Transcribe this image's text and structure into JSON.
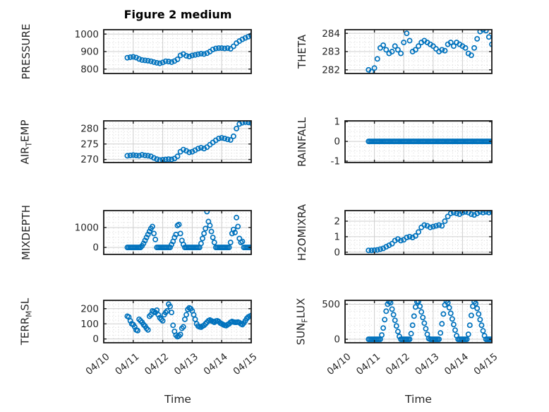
{
  "figure": {
    "title": "Figure 2 medium",
    "xlabel": "Time",
    "accent_color": "#0072BD",
    "axis_color": "#1a1a1a",
    "tick_text_color": "#262626",
    "major_grid_color": "#cfcfcf",
    "minor_grid_color": "#d6d6d6",
    "xtick_labels": [
      "04/10",
      "04/11",
      "04/12",
      "04/13",
      "04/14",
      "04/15"
    ]
  },
  "chart_data": [
    {
      "name": "pressure",
      "type": "scatter",
      "row": 0,
      "col": 0,
      "ylabel_parts": [
        {
          "t": "PRESSURE"
        }
      ],
      "ylim": [
        775,
        1025
      ],
      "yticks": [
        800,
        900,
        1000
      ],
      "minor_y": 25,
      "xlim": [
        0,
        5
      ],
      "xticks": [
        0,
        1,
        2,
        3,
        4,
        5
      ],
      "minor_x": 0.166667,
      "x0": 0.8,
      "dx": 0.1,
      "y": [
        865,
        868,
        870,
        866,
        858,
        852,
        850,
        848,
        845,
        840,
        836,
        833,
        838,
        845,
        843,
        840,
        846,
        856,
        878,
        886,
        876,
        872,
        878,
        881,
        885,
        888,
        886,
        891,
        900,
        912,
        918,
        920,
        920,
        918,
        920,
        916,
        930,
        948,
        960,
        970,
        978,
        985,
        992
      ]
    },
    {
      "name": "theta",
      "type": "scatter",
      "row": 0,
      "col": 1,
      "ylabel_parts": [
        {
          "t": "THETA"
        }
      ],
      "ylim": [
        281.8,
        284.2
      ],
      "yticks": [
        282,
        283,
        284
      ],
      "minor_y": 0.25,
      "xlim": [
        0,
        5
      ],
      "xticks": [
        0,
        1,
        2,
        3,
        4,
        5
      ],
      "minor_x": 0.166667,
      "x0": 0.8,
      "dx": 0.1,
      "y": [
        282.0,
        281.9,
        282.1,
        282.6,
        283.2,
        283.35,
        283.1,
        282.9,
        283.0,
        283.3,
        283.1,
        282.9,
        283.5,
        284.0,
        283.6,
        283.0,
        283.1,
        283.3,
        283.5,
        283.6,
        283.5,
        283.4,
        283.3,
        283.15,
        283.0,
        283.1,
        283.05,
        283.4,
        283.5,
        283.3,
        283.5,
        283.4,
        283.3,
        283.2,
        282.9,
        282.8,
        283.2,
        283.7,
        284.1,
        284.2,
        284.15,
        283.8,
        283.4
      ]
    },
    {
      "name": "air_temp",
      "type": "scatter",
      "row": 1,
      "col": 0,
      "ylabel_parts": [
        {
          "t": "AIR"
        },
        {
          "t": "T",
          "sub": true
        },
        {
          "t": "EMP"
        }
      ],
      "ylim": [
        269,
        282.5
      ],
      "yticks": [
        270,
        275,
        280
      ],
      "minor_y": 1,
      "xlim": [
        0,
        5
      ],
      "xticks": [
        0,
        1,
        2,
        3,
        4,
        5
      ],
      "minor_x": 0.166667,
      "x0": 0.8,
      "dx": 0.1,
      "y": [
        271.2,
        271.3,
        271.4,
        271.3,
        271.2,
        271.5,
        271.3,
        271.2,
        271.0,
        270.5,
        270.1,
        269.8,
        269.9,
        270.0,
        270.1,
        270.0,
        270.3,
        271.0,
        272.5,
        273.2,
        272.8,
        272.3,
        272.5,
        273.0,
        273.5,
        273.8,
        273.5,
        274.0,
        274.8,
        275.5,
        276.2,
        276.8,
        277.0,
        276.8,
        276.5,
        276.3,
        277.5,
        280.0,
        281.5,
        281.9,
        282.1,
        282.0,
        281.8
      ]
    },
    {
      "name": "rainfall",
      "type": "scatter",
      "row": 1,
      "col": 1,
      "ylabel_parts": [
        {
          "t": "RAINFALL"
        }
      ],
      "ylim": [
        -1.07,
        1.04
      ],
      "yticks": [
        -1,
        0,
        1
      ],
      "minor_y": 0.25,
      "xlim": [
        0,
        5
      ],
      "xticks": [
        0,
        1,
        2,
        3,
        4,
        5
      ],
      "minor_x": 0.166667,
      "x0": 0.8,
      "dx": 0.05,
      "y": [
        0,
        0,
        0,
        0,
        0,
        0,
        0,
        0,
        0,
        0,
        0,
        0,
        0,
        0,
        0,
        0,
        0,
        0,
        0,
        0,
        0,
        0,
        0,
        0,
        0,
        0,
        0,
        0,
        0,
        0,
        0,
        0,
        0,
        0,
        0,
        0,
        0,
        0,
        0,
        0,
        0,
        0,
        0,
        0,
        0,
        0,
        0,
        0,
        0,
        0,
        0,
        0,
        0,
        0,
        0,
        0,
        0,
        0,
        0,
        0,
        0,
        0,
        0,
        0,
        0,
        0,
        0,
        0,
        0,
        0,
        0,
        0,
        0,
        0,
        0,
        0,
        0,
        0,
        0,
        0,
        0,
        0,
        0,
        0,
        0
      ]
    },
    {
      "name": "mixdepth",
      "type": "scatter",
      "row": 2,
      "col": 0,
      "ylabel_parts": [
        {
          "t": "MIXDEPTH"
        }
      ],
      "ylim": [
        -350,
        1850
      ],
      "yticks": [
        0,
        1000
      ],
      "minor_y": 250,
      "xlim": [
        0,
        5
      ],
      "xticks": [
        0,
        1,
        2,
        3,
        4,
        5
      ],
      "minor_x": 0.166667,
      "x0": 0.8,
      "dx": 0.05,
      "y": [
        0,
        0,
        0,
        0,
        0,
        0,
        0,
        0,
        0,
        0,
        80,
        200,
        350,
        500,
        650,
        800,
        950,
        1050,
        700,
        400,
        0,
        0,
        0,
        0,
        0,
        0,
        0,
        0,
        0,
        0,
        150,
        300,
        500,
        650,
        1100,
        1150,
        700,
        350,
        150,
        0,
        0,
        0,
        0,
        0,
        0,
        0,
        0,
        0,
        0,
        0,
        200,
        450,
        700,
        950,
        1800,
        1300,
        1100,
        800,
        500,
        250,
        0,
        0,
        0,
        0,
        0,
        0,
        0,
        0,
        0,
        0,
        250,
        700,
        900,
        750,
        1500,
        1050,
        450,
        250,
        300,
        0,
        0,
        0,
        0,
        0,
        0
      ]
    },
    {
      "name": "h2omixra",
      "type": "scatter",
      "row": 2,
      "col": 1,
      "ylabel_parts": [
        {
          "t": "H2OMIXRA"
        }
      ],
      "ylim": [
        -0.14,
        2.68
      ],
      "yticks": [
        0,
        1,
        2
      ],
      "minor_y": 0.25,
      "xlim": [
        0,
        5
      ],
      "xticks": [
        0,
        1,
        2,
        3,
        4,
        5
      ],
      "minor_x": 0.166667,
      "x0": 0.8,
      "dx": 0.1,
      "y": [
        0.12,
        0.12,
        0.13,
        0.15,
        0.2,
        0.25,
        0.35,
        0.45,
        0.55,
        0.75,
        0.85,
        0.75,
        0.8,
        0.95,
        1.0,
        0.95,
        1.05,
        1.3,
        1.6,
        1.75,
        1.7,
        1.6,
        1.65,
        1.7,
        1.75,
        1.7,
        2.0,
        2.3,
        2.5,
        2.55,
        2.5,
        2.45,
        2.55,
        2.6,
        2.55,
        2.45,
        2.4,
        2.5,
        2.6,
        2.55,
        2.6,
        2.55,
        2.6
      ]
    },
    {
      "name": "terr_msl",
      "type": "scatter",
      "row": 3,
      "col": 0,
      "ylabel_parts": [
        {
          "t": "TERR"
        },
        {
          "t": "M",
          "sub": true
        },
        {
          "t": "SL"
        }
      ],
      "ylim": [
        -25,
        255
      ],
      "yticks": [
        0,
        100,
        200
      ],
      "minor_y": 25,
      "xlim": [
        0,
        5
      ],
      "xticks": [
        0,
        1,
        2,
        3,
        4,
        5
      ],
      "minor_x": 0.166667,
      "x0": 0.8,
      "dx": 0.05,
      "y": [
        150,
        145,
        120,
        100,
        95,
        80,
        60,
        55,
        130,
        120,
        110,
        95,
        85,
        70,
        60,
        150,
        160,
        185,
        180,
        175,
        190,
        160,
        140,
        130,
        120,
        160,
        175,
        185,
        230,
        215,
        175,
        90,
        50,
        25,
        15,
        20,
        30,
        70,
        80,
        130,
        160,
        195,
        205,
        200,
        185,
        160,
        130,
        100,
        85,
        80,
        78,
        85,
        90,
        100,
        110,
        120,
        125,
        120,
        115,
        110,
        118,
        120,
        115,
        105,
        100,
        95,
        90,
        88,
        95,
        100,
        110,
        115,
        112,
        110,
        110,
        112,
        108,
        100,
        95,
        105,
        120,
        135,
        145,
        150,
        155
      ]
    },
    {
      "name": "sun_flux",
      "type": "scatter",
      "row": 3,
      "col": 1,
      "ylabel_parts": [
        {
          "t": "SUN"
        },
        {
          "t": "F",
          "sub": true
        },
        {
          "t": "LUX"
        }
      ],
      "ylim": [
        -50,
        555
      ],
      "yticks": [
        0,
        500
      ],
      "minor_y": 100,
      "xlim": [
        0,
        5
      ],
      "xticks": [
        0,
        1,
        2,
        3,
        4,
        5
      ],
      "minor_x": 0.166667,
      "x0": 0.8,
      "dx": 0.05,
      "y": [
        0,
        0,
        0,
        0,
        0,
        0,
        0,
        0,
        0,
        60,
        160,
        280,
        400,
        500,
        535,
        520,
        430,
        350,
        270,
        190,
        110,
        40,
        0,
        0,
        0,
        0,
        0,
        0,
        0,
        80,
        200,
        330,
        460,
        535,
        540,
        470,
        390,
        310,
        230,
        150,
        70,
        10,
        0,
        0,
        0,
        0,
        0,
        0,
        0,
        90,
        220,
        360,
        490,
        545,
        520,
        450,
        370,
        290,
        210,
        130,
        50,
        0,
        0,
        0,
        0,
        0,
        0,
        0,
        70,
        200,
        340,
        470,
        535,
        510,
        440,
        360,
        280,
        200,
        120,
        50,
        0,
        0,
        0,
        0,
        0
      ]
    }
  ]
}
